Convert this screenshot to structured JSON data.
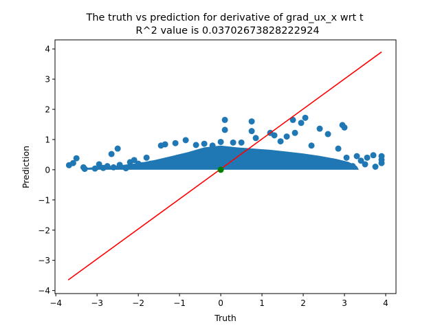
{
  "chart_data": {
    "type": "scatter",
    "title": "The truth vs prediction for derivative of grad_ux_x wrt t",
    "subtitle": "R^2 value is 0.03702673828222924",
    "xlabel": "Truth",
    "ylabel": "Prediction",
    "xlim": [
      -4.02,
      4.25
    ],
    "ylim": [
      -4.1,
      4.3
    ],
    "xticks": [
      -4,
      -3,
      -2,
      -1,
      0,
      1,
      2,
      3,
      4
    ],
    "xtick_labels": [
      "−4",
      "−3",
      "−2",
      "−1",
      "0",
      "1",
      "2",
      "3",
      "4"
    ],
    "yticks": [
      -4,
      -3,
      -2,
      -1,
      0,
      1,
      2,
      3,
      4
    ],
    "ytick_labels": [
      "−4",
      "−3",
      "−2",
      "−1",
      "0",
      "1",
      "2",
      "3",
      "4"
    ],
    "grid": false,
    "colors": {
      "points": "#1f77b4",
      "reference_line": "#ff0000",
      "origin_marker": "#008000"
    },
    "reference_line": {
      "x": [
        -3.7,
        3.9
      ],
      "y": [
        -3.65,
        3.9
      ]
    },
    "origin_marker": {
      "x": 0.0,
      "y": 0.0
    },
    "series": [
      {
        "points": [
          [
            -3.68,
            0.15
          ],
          [
            -3.58,
            0.22
          ],
          [
            -3.5,
            0.38
          ],
          [
            -3.33,
            0.08
          ],
          [
            -3.3,
            0.03
          ],
          [
            -3.05,
            0.04
          ],
          [
            -2.95,
            0.18
          ],
          [
            -2.85,
            0.06
          ],
          [
            -2.75,
            0.12
          ],
          [
            -2.65,
            0.52
          ],
          [
            -2.6,
            0.08
          ],
          [
            -2.5,
            0.7
          ],
          [
            -2.45,
            0.16
          ],
          [
            -2.3,
            0.05
          ],
          [
            -2.2,
            0.25
          ],
          [
            -2.1,
            0.32
          ],
          [
            -2.0,
            0.2
          ],
          [
            -1.9,
            0.15
          ],
          [
            -1.8,
            0.4
          ],
          [
            -1.7,
            0.2
          ],
          [
            -1.45,
            0.8
          ],
          [
            -1.35,
            0.84
          ],
          [
            -1.1,
            0.88
          ],
          [
            -0.85,
            0.98
          ],
          [
            -0.6,
            0.82
          ],
          [
            -0.4,
            0.86
          ],
          [
            -0.2,
            0.8
          ],
          [
            0.0,
            0.92
          ],
          [
            0.1,
            1.32
          ],
          [
            0.1,
            1.65
          ],
          [
            0.3,
            0.9
          ],
          [
            0.5,
            0.9
          ],
          [
            0.75,
            1.6
          ],
          [
            0.75,
            1.28
          ],
          [
            0.85,
            1.05
          ],
          [
            1.2,
            1.22
          ],
          [
            1.3,
            1.14
          ],
          [
            1.45,
            0.94
          ],
          [
            1.6,
            1.1
          ],
          [
            1.75,
            1.65
          ],
          [
            1.8,
            1.22
          ],
          [
            1.95,
            1.55
          ],
          [
            2.05,
            1.72
          ],
          [
            2.2,
            0.8
          ],
          [
            2.4,
            1.36
          ],
          [
            2.6,
            1.18
          ],
          [
            2.85,
            0.7
          ],
          [
            2.95,
            1.48
          ],
          [
            3.0,
            1.4
          ],
          [
            3.05,
            0.4
          ],
          [
            3.3,
            0.45
          ],
          [
            3.4,
            0.3
          ],
          [
            3.55,
            0.4
          ],
          [
            3.7,
            0.48
          ],
          [
            3.9,
            0.45
          ],
          [
            3.9,
            0.33
          ],
          [
            3.9,
            0.22
          ],
          [
            3.75,
            0.1
          ],
          [
            3.5,
            0.18
          ],
          [
            3.2,
            0.12
          ]
        ]
      }
    ]
  }
}
